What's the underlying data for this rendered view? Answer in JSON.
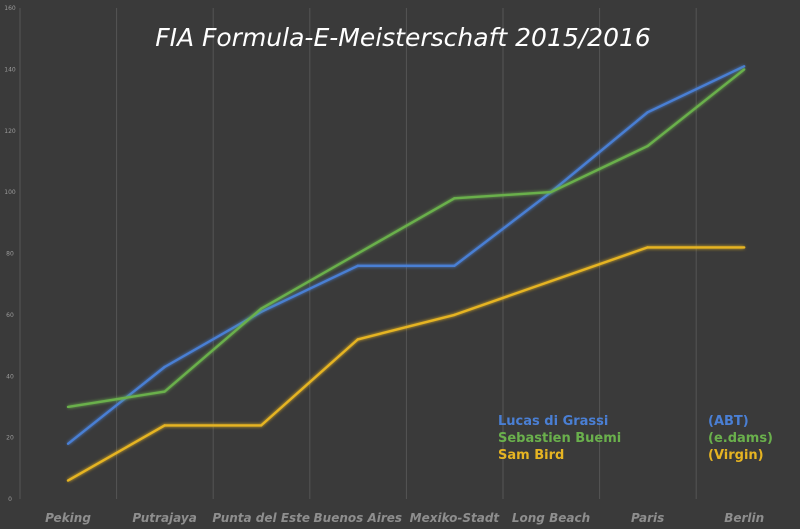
{
  "chart_data": {
    "type": "line",
    "title": "FIA Formula-E-Meisterschaft 2015/2016",
    "categories": [
      "Peking",
      "Putrajaya",
      "Punta del Este",
      "Buenos Aires",
      "Mexiko-Stadt",
      "Long Beach",
      "Paris",
      "Berlin"
    ],
    "y_ticks": [
      "0",
      "20",
      "40",
      "60",
      "80",
      "100",
      "120",
      "140",
      "160"
    ],
    "ylim": [
      0,
      160
    ],
    "grid": true,
    "legend_position": "bottom-right",
    "series": [
      {
        "name": "Lucas di Grassi",
        "team": "(ABT)",
        "color": "#4a7fd4",
        "values": [
          18,
          43,
          61,
          76,
          76,
          100,
          126,
          141
        ]
      },
      {
        "name": "Sebastien Buemi",
        "team": "(e.dams)",
        "color": "#6ab04c",
        "values": [
          30,
          35,
          62,
          80,
          98,
          100,
          115,
          140
        ]
      },
      {
        "name": "Sam Bird",
        "team": "(Virgin)",
        "color": "#e6b422",
        "values": [
          6,
          24,
          24,
          52,
          60,
          71,
          82,
          82
        ]
      }
    ]
  }
}
